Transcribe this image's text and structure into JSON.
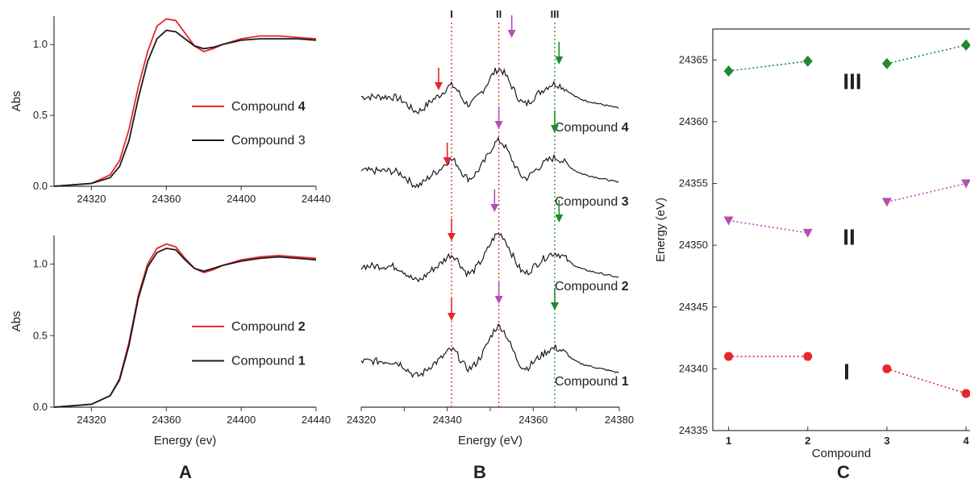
{
  "chart_data": [
    {
      "panel": "A",
      "type": "line",
      "xlabel": "",
      "ylabel": "Abs",
      "xlim": [
        24300,
        24440
      ],
      "ylim": [
        0,
        1.2
      ],
      "xticks": [
        "24320",
        "24360",
        "24400",
        "24440"
      ],
      "yticks": [
        "0.0",
        "0.5",
        "1.0"
      ],
      "series": [
        {
          "name": "Compound 4",
          "color": "#e8262b",
          "x": [
            24300,
            24320,
            24330,
            24335,
            24340,
            24345,
            24350,
            24355,
            24360,
            24365,
            24370,
            24375,
            24380,
            24385,
            24390,
            24400,
            24410,
            24420,
            24430,
            24440
          ],
          "y": [
            0.0,
            0.02,
            0.08,
            0.18,
            0.4,
            0.7,
            0.95,
            1.13,
            1.18,
            1.17,
            1.08,
            0.99,
            0.95,
            0.97,
            1.0,
            1.04,
            1.06,
            1.06,
            1.05,
            1.04
          ]
        },
        {
          "name": "Compound 3",
          "color": "#1a1a1a",
          "x": [
            24300,
            24320,
            24330,
            24335,
            24340,
            24345,
            24350,
            24355,
            24360,
            24365,
            24370,
            24375,
            24380,
            24385,
            24390,
            24400,
            24410,
            24420,
            24430,
            24440
          ],
          "y": [
            0.0,
            0.02,
            0.06,
            0.14,
            0.32,
            0.62,
            0.88,
            1.04,
            1.1,
            1.09,
            1.04,
            0.99,
            0.97,
            0.98,
            1.0,
            1.03,
            1.04,
            1.04,
            1.04,
            1.03
          ]
        }
      ],
      "legend": [
        {
          "prefix": "Compound ",
          "bold": "4",
          "color": "#e8262b"
        },
        {
          "prefix": "Compound 3",
          "bold": "",
          "color": "#1a1a1a"
        }
      ]
    },
    {
      "panel": "A",
      "type": "line",
      "xlabel": "Energy (ev)",
      "ylabel": "Abs",
      "xlim": [
        24300,
        24440
      ],
      "ylim": [
        0,
        1.2
      ],
      "xticks": [
        "24320",
        "24360",
        "24400",
        "24440"
      ],
      "yticks": [
        "0.0",
        "0.5",
        "1.0"
      ],
      "series": [
        {
          "name": "Compound 2",
          "color": "#e8262b",
          "x": [
            24300,
            24320,
            24330,
            24335,
            24340,
            24345,
            24350,
            24355,
            24360,
            24365,
            24370,
            24375,
            24380,
            24385,
            24390,
            24400,
            24410,
            24420,
            24430,
            24440
          ],
          "y": [
            0.0,
            0.02,
            0.08,
            0.2,
            0.45,
            0.78,
            1.0,
            1.11,
            1.14,
            1.12,
            1.04,
            0.97,
            0.94,
            0.96,
            0.99,
            1.03,
            1.05,
            1.06,
            1.05,
            1.04
          ]
        },
        {
          "name": "Compound 1",
          "color": "#1a1a1a",
          "x": [
            24300,
            24320,
            24330,
            24335,
            24340,
            24345,
            24350,
            24355,
            24360,
            24365,
            24370,
            24375,
            24380,
            24385,
            24390,
            24400,
            24410,
            24420,
            24430,
            24440
          ],
          "y": [
            0.0,
            0.02,
            0.08,
            0.19,
            0.43,
            0.76,
            0.98,
            1.08,
            1.11,
            1.1,
            1.03,
            0.97,
            0.95,
            0.97,
            0.99,
            1.02,
            1.04,
            1.05,
            1.04,
            1.03
          ]
        }
      ],
      "legend": [
        {
          "prefix": "Compound ",
          "bold": "2",
          "color": "#e8262b"
        },
        {
          "prefix": "Compound ",
          "bold": "1",
          "color": "#1a1a1a"
        }
      ]
    },
    {
      "panel": "B",
      "type": "line",
      "xlabel": "Energy (eV)",
      "xlim": [
        24320,
        24380
      ],
      "xticks": [
        "24320",
        "24330",
        "24340",
        "24350",
        "24360",
        "24370",
        "24380"
      ],
      "guide_lines": [
        {
          "label": "I",
          "x": 24341,
          "color": "#e8262b"
        },
        {
          "label": "II",
          "x": 24352,
          "color": "#e8262b"
        },
        {
          "label": "III",
          "x": 24365,
          "color": "#1f8a2e"
        }
      ],
      "traces": [
        {
          "prefix": "Compound ",
          "bold": "4",
          "arrows": [
            {
              "x": 24338,
              "color": "#e8262b"
            },
            {
              "x": 24355,
              "color": "#b24fb5"
            },
            {
              "x": 24366,
              "color": "#1f8a2e"
            }
          ]
        },
        {
          "prefix": "Compound ",
          "bold": "3",
          "arrows": [
            {
              "x": 24340,
              "color": "#e8262b"
            },
            {
              "x": 24352,
              "color": "#b24fb5"
            },
            {
              "x": 24365,
              "color": "#1f8a2e"
            }
          ]
        },
        {
          "prefix": "Compound ",
          "bold": "2",
          "arrows": [
            {
              "x": 24341,
              "color": "#e8262b"
            },
            {
              "x": 24351,
              "color": "#b24fb5"
            },
            {
              "x": 24366,
              "color": "#1f8a2e"
            }
          ]
        },
        {
          "prefix": "Compound ",
          "bold": "1",
          "arrows": [
            {
              "x": 24341,
              "color": "#e8262b"
            },
            {
              "x": 24352,
              "color": "#b24fb5"
            },
            {
              "x": 24365,
              "color": "#1f8a2e"
            }
          ]
        }
      ]
    },
    {
      "panel": "C",
      "type": "scatter",
      "xlabel": "Compound",
      "ylabel": "Energy (eV)",
      "xlim": [
        0.8,
        4.05
      ],
      "ylim": [
        24335,
        24367.5
      ],
      "xticks": [
        "1",
        "2",
        "3",
        "4"
      ],
      "yticks": [
        "24335",
        "24340",
        "24345",
        "24350",
        "24355",
        "24360",
        "24365"
      ],
      "series": [
        {
          "name": "III",
          "color": "#1f8a2e",
          "marker": "diamond",
          "points": [
            [
              1,
              24364.1
            ],
            [
              2,
              24364.9
            ],
            [
              3,
              24364.7
            ],
            [
              4,
              24366.2
            ]
          ]
        },
        {
          "name": "II",
          "color": "#b24fb5",
          "marker": "triangle-down",
          "points": [
            [
              1,
              24352
            ],
            [
              2,
              24351
            ],
            [
              3,
              24353.5
            ],
            [
              4,
              24355
            ]
          ]
        },
        {
          "name": "I",
          "color": "#e8262b",
          "marker": "circle",
          "points": [
            [
              1,
              24341
            ],
            [
              2,
              24341
            ],
            [
              3,
              24340
            ],
            [
              4,
              24338
            ]
          ]
        }
      ]
    }
  ],
  "panel_letters": [
    "A",
    "B",
    "C"
  ]
}
